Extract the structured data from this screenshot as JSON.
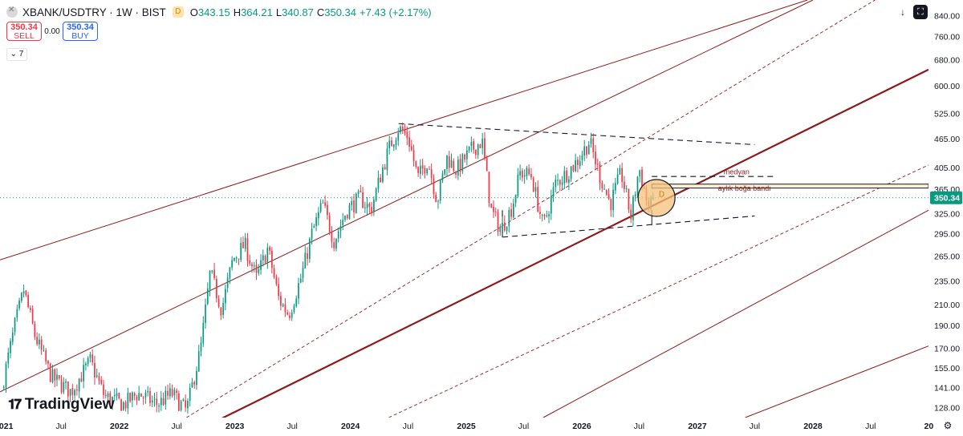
{
  "header": {
    "symbol_title": "XBANK/USDTRY · 1W · BIST",
    "timeframe_badge": "D",
    "open_label": "O",
    "open": "343.15",
    "high_label": "H",
    "high": "364.21",
    "low_label": "L",
    "low": "340.87",
    "close_label": "C",
    "close": "350.34",
    "change": "+7.43 (+2.17%)"
  },
  "trade": {
    "sell_price": "350.34",
    "sell_label": "SELL",
    "spread": "0.00",
    "buy_price": "350.34",
    "buy_label": "BUY"
  },
  "indicator_toggle": "7",
  "branding": "TradingView",
  "colors": {
    "up": "#089981",
    "down": "#f23645",
    "channel": "#8b1a1a",
    "pattern": "#131722",
    "price_tag": "#089981",
    "highlight_fill": "#f5c07a",
    "band_fill": "#fdf0d8"
  },
  "icons": [
    "arrow-down-icon",
    "fullscreen-icon",
    "settings-icon",
    "chevron-down-icon",
    "symbol-logo-icon"
  ],
  "chart_data": {
    "type": "candlestick",
    "scale": "log",
    "interval": "1W",
    "ylim": [
      122,
      905
    ],
    "x_range": [
      "2020-12-20",
      "2028-12-31"
    ],
    "y_ticks": [
      128,
      141,
      155,
      170,
      190,
      210,
      235,
      265,
      295,
      325,
      365,
      405,
      465,
      525,
      600,
      680,
      760,
      840
    ],
    "y_tick_labels": [
      "128.00",
      "141.00",
      "155.00",
      "170.00",
      "190.00",
      "210.00",
      "235.00",
      "265.00",
      "295.00",
      "325.00",
      "365.00",
      "405.00",
      "465.00",
      "525.00",
      "600.00",
      "680.00",
      "760.00",
      "840.00"
    ],
    "x_ticks": [
      {
        "date": "2021-01-01",
        "label": "2021",
        "major": true
      },
      {
        "date": "2021-07-01",
        "label": "Jul",
        "major": false
      },
      {
        "date": "2022-01-01",
        "label": "2022",
        "major": true
      },
      {
        "date": "2022-07-01",
        "label": "Jul",
        "major": false
      },
      {
        "date": "2023-01-01",
        "label": "2023",
        "major": true
      },
      {
        "date": "2023-07-01",
        "label": "Jul",
        "major": false
      },
      {
        "date": "2024-01-01",
        "label": "2024",
        "major": true
      },
      {
        "date": "2024-07-01",
        "label": "Jul",
        "major": false
      },
      {
        "date": "2025-01-01",
        "label": "2025",
        "major": true
      },
      {
        "date": "2025-07-01",
        "label": "Jul",
        "major": false
      },
      {
        "date": "2026-01-01",
        "label": "2026",
        "major": true
      },
      {
        "date": "2026-07-01",
        "label": "Jul",
        "major": false
      },
      {
        "date": "2027-01-01",
        "label": "2027",
        "major": true
      },
      {
        "date": "2027-07-01",
        "label": "Jul",
        "major": false
      },
      {
        "date": "2028-01-01",
        "label": "2028",
        "major": true
      },
      {
        "date": "2028-07-01",
        "label": "Jul",
        "major": false
      },
      {
        "date": "2029-01-01",
        "label": "20",
        "major": true
      }
    ],
    "last_price": 350.34,
    "last_price_label": "350.34",
    "price_path": [
      [
        "2020-12-25",
        140
      ],
      [
        "2021-02-05",
        190
      ],
      [
        "2021-03-05",
        225
      ],
      [
        "2021-04-10",
        180
      ],
      [
        "2021-06-01",
        148
      ],
      [
        "2021-08-01",
        138
      ],
      [
        "2021-10-01",
        160
      ],
      [
        "2021-11-15",
        135
      ],
      [
        "2022-01-15",
        130
      ],
      [
        "2022-03-01",
        137
      ],
      [
        "2022-05-01",
        130
      ],
      [
        "2022-06-15",
        137
      ],
      [
        "2022-08-01",
        126
      ],
      [
        "2022-09-15",
        170
      ],
      [
        "2022-10-15",
        245
      ],
      [
        "2022-11-20",
        205
      ],
      [
        "2022-12-25",
        260
      ],
      [
        "2023-02-01",
        280
      ],
      [
        "2023-03-10",
        238
      ],
      [
        "2023-04-15",
        275
      ],
      [
        "2023-05-20",
        215
      ],
      [
        "2023-06-20",
        200
      ],
      [
        "2023-07-30",
        240
      ],
      [
        "2023-09-01",
        295
      ],
      [
        "2023-10-05",
        340
      ],
      [
        "2023-11-10",
        285
      ],
      [
        "2023-12-20",
        330
      ],
      [
        "2024-02-01",
        350
      ],
      [
        "2024-03-05",
        330
      ],
      [
        "2024-04-10",
        400
      ],
      [
        "2024-05-05",
        450
      ],
      [
        "2024-06-01",
        490
      ],
      [
        "2024-07-01",
        470
      ],
      [
        "2024-08-01",
        385
      ],
      [
        "2024-09-01",
        420
      ],
      [
        "2024-10-01",
        345
      ],
      [
        "2024-11-01",
        425
      ],
      [
        "2024-12-01",
        400
      ],
      [
        "2025-01-15",
        440
      ],
      [
        "2025-02-20",
        460
      ],
      [
        "2025-03-20",
        330
      ],
      [
        "2025-04-20",
        300
      ],
      [
        "2025-05-25",
        335
      ],
      [
        "2025-06-20",
        395
      ],
      [
        "2025-07-25",
        390
      ],
      [
        "2025-09-01",
        305
      ],
      [
        "2025-10-10",
        375
      ],
      [
        "2025-11-15",
        395
      ],
      [
        "2025-12-20",
        420
      ],
      [
        "2026-01-25",
        460
      ],
      [
        "2026-03-01",
        385
      ],
      [
        "2026-04-01",
        340
      ],
      [
        "2026-05-05",
        395
      ],
      [
        "2026-06-05",
        320
      ],
      [
        "2026-07-01",
        405
      ],
      [
        "2026-08-01",
        330
      ],
      [
        "2026-08-20",
        350.34
      ]
    ],
    "drawings": {
      "channel_main": [
        [
          "2022-11-15",
          121
        ],
        [
          "2028-12-31",
          648
        ]
      ],
      "channel_upper_1": [
        [
          "2020-12-20",
          260
        ],
        [
          "2027-12-15",
          905
        ]
      ],
      "channel_upper_2": [
        [
          "2020-12-20",
          138
        ],
        [
          "2028-01-01",
          905
        ]
      ],
      "channel_upper_2_dashed": [
        [
          "2022-08-01",
          122
        ],
        [
          "2028-07-15",
          905
        ]
      ],
      "channel_lower_dashed": [
        [
          "2024-05-01",
          122
        ],
        [
          "2028-12-31",
          410
        ]
      ],
      "channel_lower_1": [
        [
          "2025-09-01",
          122
        ],
        [
          "2028-12-31",
          330
        ]
      ],
      "channel_lower_2": [
        [
          "2027-06-01",
          122
        ],
        [
          "2028-12-31",
          172
        ]
      ],
      "triangle_top": [
        [
          "2024-06-01",
          500
        ],
        [
          "2027-07-01",
          452
        ]
      ],
      "triangle_bottom": [
        [
          "2025-04-25",
          290
        ],
        [
          "2027-07-01",
          321
        ]
      ],
      "triangle_left": [
        [
          "2025-04-25",
          290
        ],
        [
          "2025-04-25",
          330
        ]
      ],
      "median_line": [
        [
          "2026-08-10",
          388
        ],
        [
          "2027-09-01",
          388
        ]
      ],
      "lower_pennant": [
        [
          "2026-08-10",
          307
        ],
        [
          "2026-08-10",
          330
        ]
      ],
      "band_rect": [
        [
          "2026-08-10",
          367
        ],
        [
          "2028-12-31",
          374
        ]
      ],
      "highlight_circle": [
        "2026-08-25",
        350
      ]
    },
    "annotations": [
      {
        "text": "medyan",
        "date": "2027-05-05",
        "value": 392
      },
      {
        "text": "aylık boğa bandı",
        "date": "2027-05-30",
        "value": 362
      },
      {
        "text": "D",
        "date": "2026-09-10",
        "value": 352
      }
    ]
  }
}
